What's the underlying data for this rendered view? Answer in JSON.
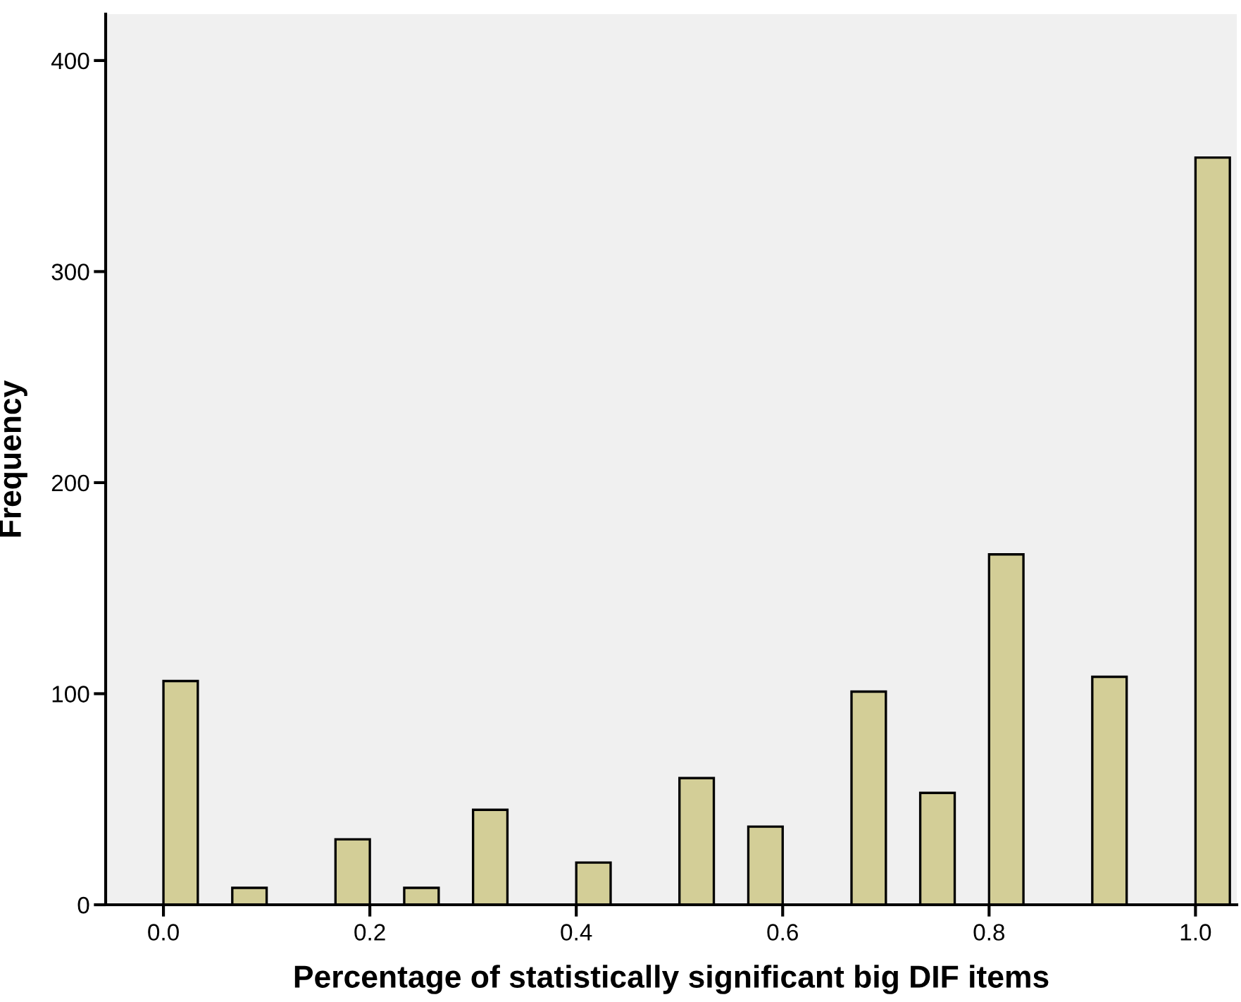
{
  "chart_data": {
    "type": "histogram",
    "xlabel": "Percentage of statistically significant big DIF items",
    "ylabel": "Frequency",
    "bins": [
      0,
      0.0333,
      0.0667,
      0.1,
      0.1333,
      0.1667,
      0.2,
      0.2333,
      0.2667,
      0.3,
      0.3333,
      0.3667,
      0.4,
      0.4333,
      0.4667,
      0.5,
      0.5333,
      0.5667,
      0.6,
      0.6333,
      0.6667,
      0.7,
      0.7333,
      0.7667,
      0.8,
      0.8333,
      0.8667,
      0.9,
      0.9333,
      0.9667,
      1.0,
      1.0333
    ],
    "values": [
      106,
      0,
      8,
      0,
      0,
      31,
      0,
      8,
      0,
      45,
      0,
      0,
      20,
      0,
      0,
      60,
      0,
      37,
      0,
      0,
      101,
      0,
      53,
      0,
      166,
      0,
      0,
      108,
      0,
      0,
      354
    ],
    "color": "#d3ce97",
    "xlim": [
      -0.056,
      1.04
    ],
    "ylim": [
      0,
      422
    ],
    "xticks": [
      {
        "value": 0,
        "label": "0.0"
      },
      {
        "value": 0.2,
        "label": "0.2"
      },
      {
        "value": 0.4,
        "label": "0.4"
      },
      {
        "value": 0.6,
        "label": "0.6"
      },
      {
        "value": 0.8,
        "label": "0.8"
      },
      {
        "value": 1.0,
        "label": "1.0"
      }
    ],
    "yticks": [
      0,
      100,
      200,
      300,
      400
    ],
    "grid": false,
    "legend": false
  }
}
